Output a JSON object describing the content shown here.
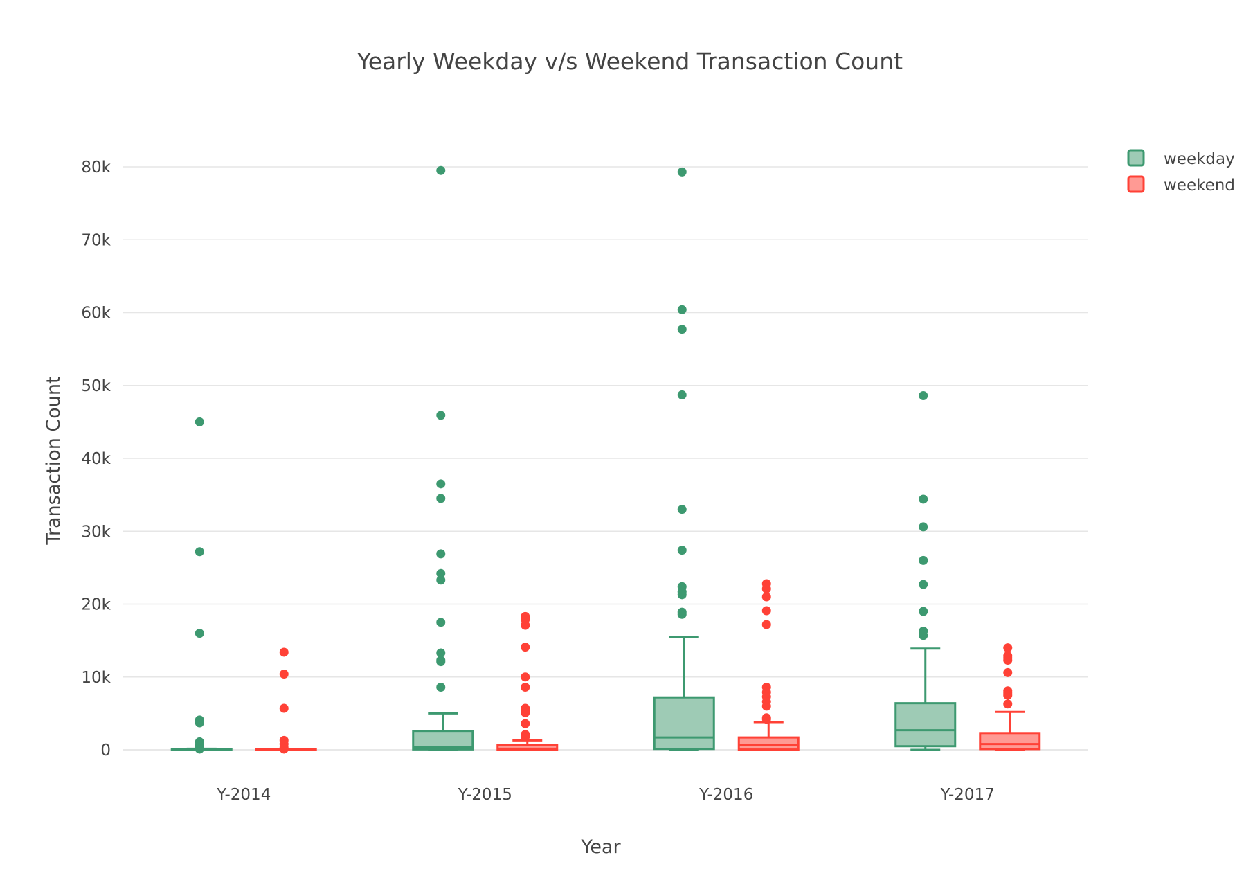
{
  "chart_data": {
    "type": "box",
    "title": "Yearly Weekday v/s Weekend Transaction Count",
    "xlabel": "Year",
    "ylabel": "Transaction Count",
    "categories": [
      "Y-2014",
      "Y-2015",
      "Y-2016",
      "Y-2017"
    ],
    "ylim": [
      -5000,
      88000
    ],
    "yticks": [
      0,
      10000,
      20000,
      30000,
      40000,
      50000,
      60000,
      70000,
      80000
    ],
    "ytick_labels": [
      "0",
      "10k",
      "20k",
      "30k",
      "40k",
      "50k",
      "60k",
      "70k",
      "80k"
    ],
    "grid": true,
    "legend_position": "top-right",
    "series": [
      {
        "name": "weekday",
        "color": "#3d9970",
        "fill": "#9ecbb5",
        "boxes": [
          {
            "category": "Y-2014",
            "lower_fence": 0,
            "q1": 0,
            "median": 30,
            "q3": 80,
            "upper_fence": 150,
            "outliers": [
              45000,
              27200,
              16000,
              4100,
              3700,
              1100,
              700,
              300,
              100
            ]
          },
          {
            "category": "Y-2015",
            "lower_fence": 0,
            "q1": 60,
            "median": 400,
            "q3": 2600,
            "upper_fence": 5000,
            "outliers": [
              79500,
              45900,
              36500,
              34500,
              26900,
              24200,
              23300,
              17500,
              13300,
              12300,
              12100,
              8600
            ]
          },
          {
            "category": "Y-2016",
            "lower_fence": 0,
            "q1": 120,
            "median": 1700,
            "q3": 7200,
            "upper_fence": 15500,
            "outliers": [
              79300,
              60400,
              57700,
              48700,
              33000,
              27400,
              22400,
              21700,
              21300,
              18900,
              18600
            ]
          },
          {
            "category": "Y-2017",
            "lower_fence": 0,
            "q1": 500,
            "median": 2700,
            "q3": 6400,
            "upper_fence": 13900,
            "outliers": [
              48600,
              34400,
              30600,
              26000,
              22700,
              19000,
              16300,
              15700
            ]
          }
        ]
      },
      {
        "name": "weekend",
        "color": "#ff4136",
        "fill": "#ff9a94",
        "boxes": [
          {
            "category": "Y-2014",
            "lower_fence": 0,
            "q1": 0,
            "median": 20,
            "q3": 60,
            "upper_fence": 120,
            "outliers": [
              13400,
              10400,
              5700,
              1300,
              800,
              300,
              100
            ]
          },
          {
            "category": "Y-2015",
            "lower_fence": 0,
            "q1": 30,
            "median": 150,
            "q3": 650,
            "upper_fence": 1300,
            "outliers": [
              18300,
              17900,
              17100,
              14100,
              10000,
              8600,
              5700,
              5400,
              5100,
              3600,
              2100,
              1800
            ]
          },
          {
            "category": "Y-2016",
            "lower_fence": 0,
            "q1": 40,
            "median": 700,
            "q3": 1700,
            "upper_fence": 3800,
            "outliers": [
              22800,
              22100,
              21000,
              19100,
              17200,
              8600,
              7900,
              7300,
              6600,
              6000,
              4400,
              4200
            ]
          },
          {
            "category": "Y-2017",
            "lower_fence": 0,
            "q1": 100,
            "median": 800,
            "q3": 2300,
            "upper_fence": 5200,
            "outliers": [
              14000,
              12900,
              12600,
              12300,
              10600,
              8100,
              7800,
              7500,
              6300
            ]
          }
        ]
      }
    ]
  }
}
